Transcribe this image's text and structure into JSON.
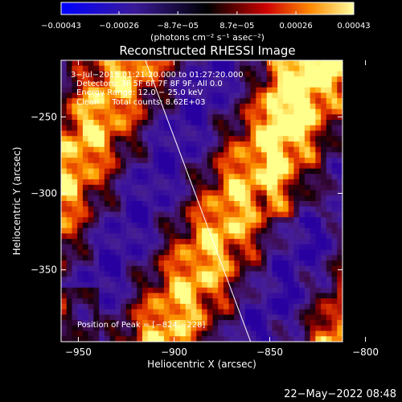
{
  "chart_data": {
    "type": "heatmap",
    "title": "Reconstructed RHESSI Image",
    "xlabel": "Heliocentric X (arcsec)",
    "ylabel": "Heliocentric Y (arcsec)",
    "xlim": [
      -959,
      -812
    ],
    "ylim": [
      -397,
      -213
    ],
    "x_ticks": [
      -950,
      -900,
      -850,
      -800
    ],
    "x_tick_labels": [
      "−950",
      "−900",
      "−850",
      "−800"
    ],
    "y_ticks": [
      -350,
      -300,
      -250
    ],
    "y_tick_labels": [
      "−350",
      "−300",
      "−250"
    ],
    "colorbar": {
      "min": -0.00043,
      "max": 0.00043,
      "ticks": [
        -0.00043,
        -0.00026,
        -8.7e-05,
        8.7e-05,
        0.00026,
        0.00043
      ],
      "tick_labels": [
        "−0.00043",
        "−0.00026",
        "−8.7e−05",
        "8.7e−05",
        "0.00026",
        "0.00043"
      ],
      "units": "(photons cm⁻² s⁻¹ asec⁻²)"
    },
    "annotations": [
      "3−Jul−2015 01:21:20.000 to 01:27:20.000",
      "Detectors: 3F 5F 6F 7F 8F 9F, All 0.0",
      "Energy Range: 12.0 − 25.0 keV",
      "Clean     Total counts: 8.62E+03"
    ],
    "peak_label": "Position of Peak = [−824,−228]",
    "peak": [
      -824,
      -228
    ],
    "limb_line": [
      [
        -915,
        -213
      ],
      [
        -860,
        -397
      ]
    ]
  },
  "footer": {
    "timestamp": "22−May−2022 08:48"
  },
  "colors": {
    "background": "#000000",
    "text": "#ffffff"
  }
}
